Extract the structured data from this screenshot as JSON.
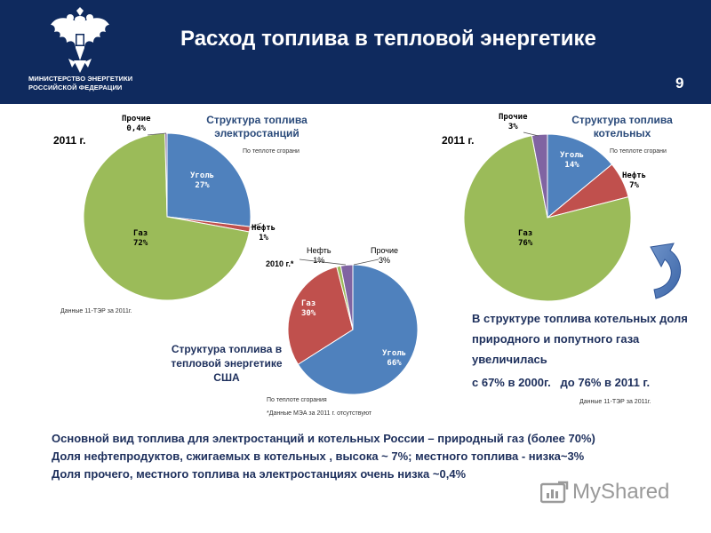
{
  "header": {
    "title": "Расход топлива в тепловой энергетике",
    "ministry_line1": "МИНИСТЕРСТВО ЭНЕРГЕТИКИ",
    "ministry_line2": "РОССИЙСКОЙ ФЕДЕРАЦИИ",
    "page_number": "9"
  },
  "colors": {
    "header_bg": "#0f2a5e",
    "coal": "#4f81bd",
    "oil": "#c0504d",
    "gas": "#9bbb59",
    "other": "#8064a2",
    "text_blue": "#1d2f5c"
  },
  "chart_data": [
    {
      "type": "pie",
      "title_line1": "Структура топлива",
      "title_line2": "электростанций",
      "year": "2011 г.",
      "note": "По теплоте сгорани",
      "source": "Данные 11-ТЭР за 2011г.",
      "slices": [
        {
          "name": "Уголь",
          "value": 27,
          "label": "27%",
          "color": "#4f81bd"
        },
        {
          "name": "Нефть",
          "value": 1,
          "label": "1%",
          "color": "#c0504d"
        },
        {
          "name": "Газ",
          "value": 72,
          "label": "72%",
          "color": "#9bbb59"
        },
        {
          "name": "Прочие",
          "value": 0.4,
          "label": "0,4%",
          "color": "#8064a2"
        }
      ]
    },
    {
      "type": "pie",
      "title_line1": "Структура топлива",
      "title_line2": "котельных",
      "year": "2011 г.",
      "note": "По теплоте сгорани",
      "slices": [
        {
          "name": "Уголь",
          "value": 14,
          "label": "14%",
          "color": "#4f81bd"
        },
        {
          "name": "Нефть",
          "value": 7,
          "label": "7%",
          "color": "#c0504d"
        },
        {
          "name": "Газ",
          "value": 76,
          "label": "76%",
          "color": "#9bbb59"
        },
        {
          "name": "Прочие",
          "value": 3,
          "label": "3%",
          "color": "#8064a2"
        }
      ]
    },
    {
      "type": "pie",
      "title_line1": "Структура топлива в",
      "title_line2": "тепловой энергетике",
      "title_line3": "США",
      "year": "2010 г.*",
      "note": "По теплоте сгорания",
      "footnote": "*Данные МЭА за 2011 г. отсутствуют",
      "slices": [
        {
          "name": "Уголь",
          "value": 66,
          "label": "66%",
          "color": "#4f81bd"
        },
        {
          "name": "Газ",
          "value": 30,
          "label": "30%",
          "color": "#c0504d"
        },
        {
          "name": "Нефть",
          "value": 1,
          "label": "1%",
          "color": "#9bbb59"
        },
        {
          "name": "Прочие",
          "value": 3,
          "label": "3%",
          "color": "#8064a2"
        }
      ]
    }
  ],
  "highlight": {
    "line1": "В структуре топлива котельных доля",
    "line2": "природного и попутного газа",
    "line3": "увеличилась",
    "line4": "с 67% в 2000г.   до 76% в 2011 г.",
    "source": "Данные 11-ТЭР за 2011г."
  },
  "summary": {
    "line1": "Основной вид топлива для электростанций и котельных России – природный газ (более 70%)",
    "line2": "Доля нефтепродуктов, сжигаемых в котельных , высока ~ 7%; местного топлива  - низка~3%",
    "line3": "Доля прочего, местного топлива на электростанциях очень низка ~0,4%"
  },
  "watermark": {
    "text": "MyShared"
  }
}
